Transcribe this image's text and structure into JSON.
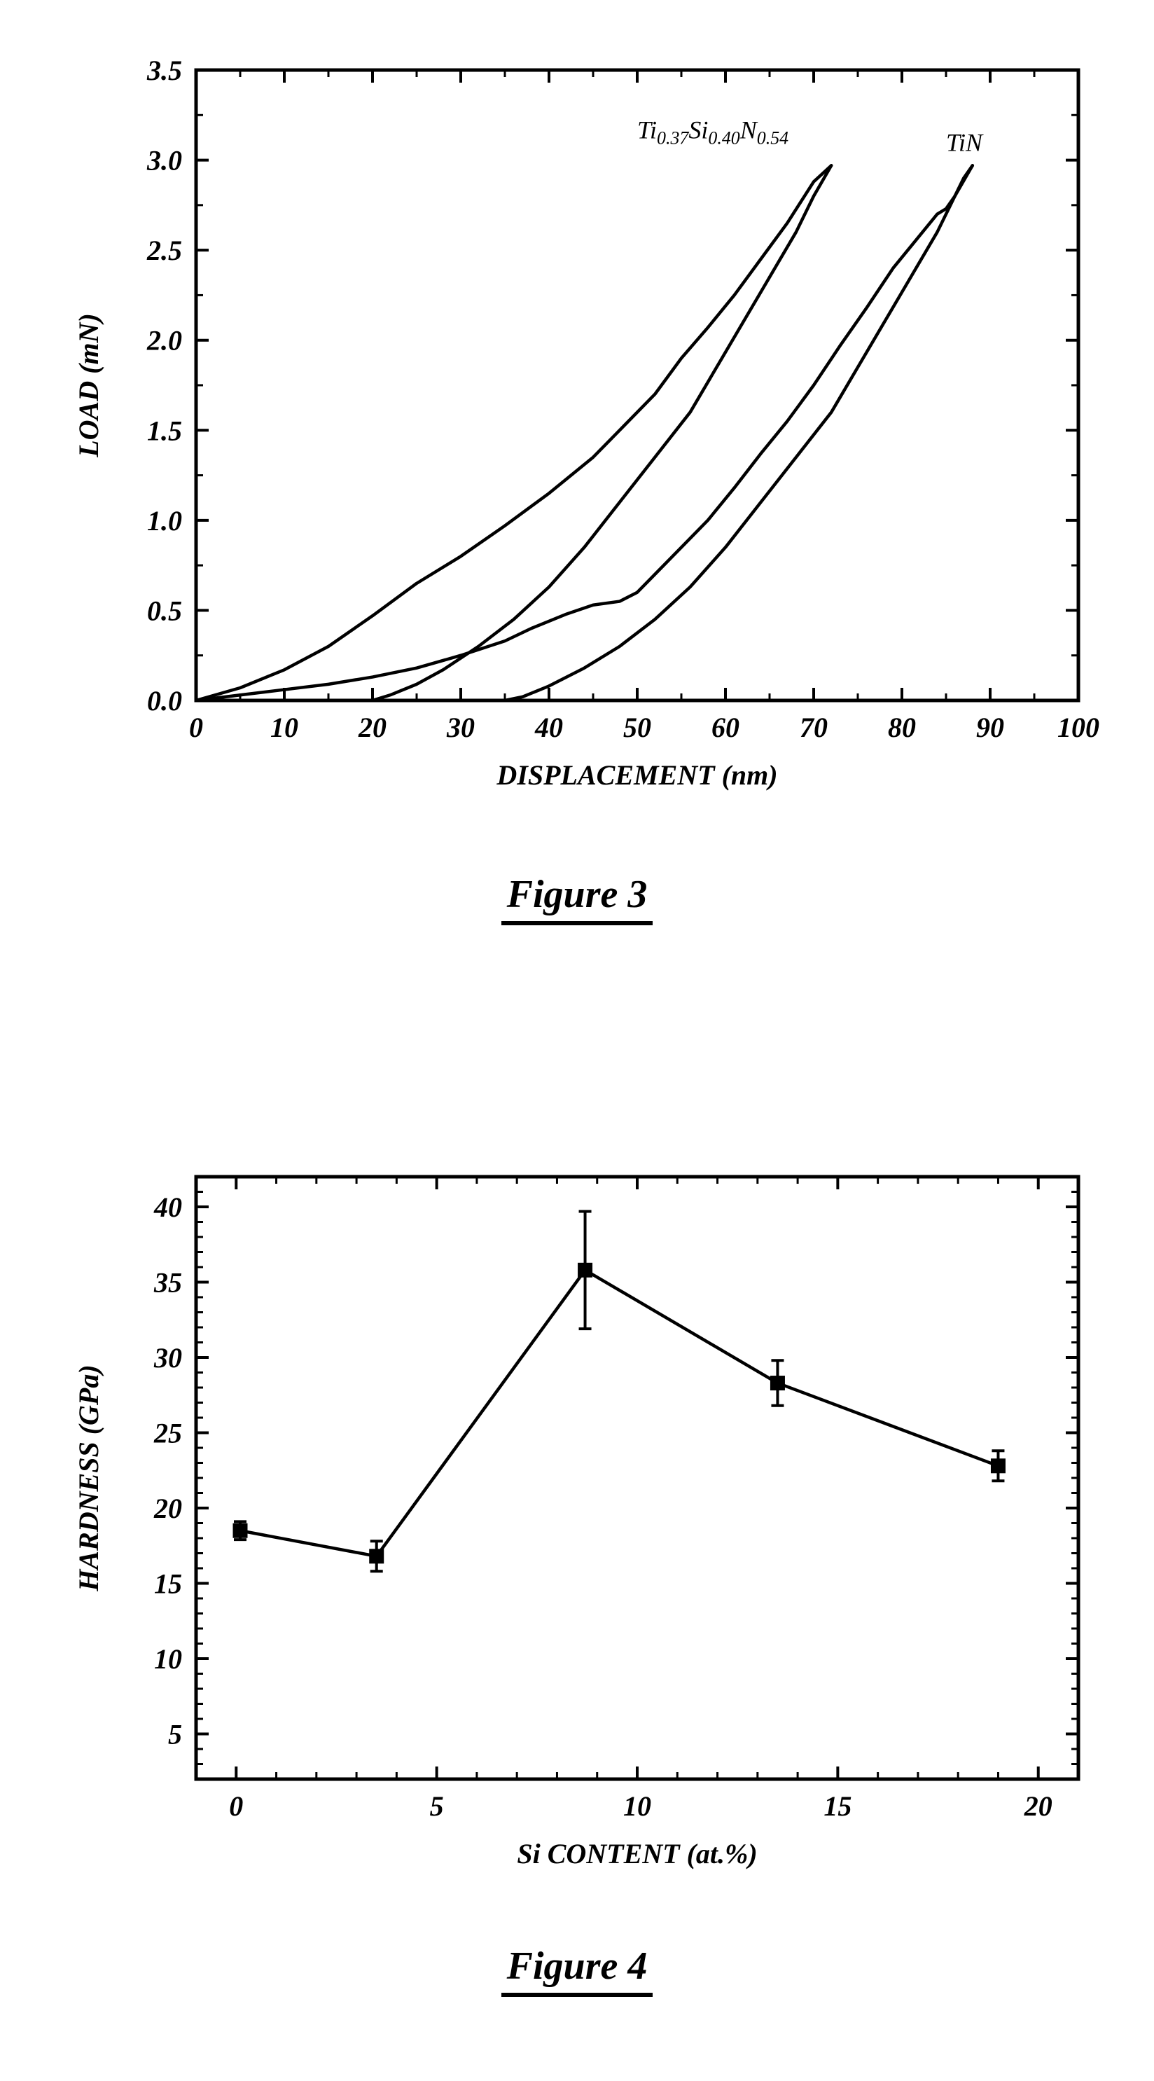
{
  "figure3": {
    "caption": "Figure 3",
    "type": "line",
    "xlabel": "DISPLACEMENT (nm)",
    "ylabel": "LOAD (mN)",
    "xlim": [
      0,
      100
    ],
    "ylim": [
      0.0,
      3.5
    ],
    "xticks": [
      0,
      10,
      20,
      30,
      40,
      50,
      60,
      70,
      80,
      90,
      100
    ],
    "yticks": [
      0.0,
      0.5,
      1.0,
      1.5,
      2.0,
      2.5,
      3.0,
      3.5
    ],
    "ytick_labels": [
      "0.0",
      "0.5",
      "1.0",
      "1.5",
      "2.0",
      "2.5",
      "3.0",
      "3.5"
    ],
    "label_fontsize": 40,
    "tick_fontsize": 40,
    "series_label_fontsize": 36,
    "line_width": 4.5,
    "line_color": "#000000",
    "axis_color": "#000000",
    "axis_width": 5,
    "tick_length_major": 18,
    "tick_length_minor": 10,
    "background_color": "#ffffff",
    "series": [
      {
        "name": "TiSiN_load",
        "label": "Ti_{0.37}Si_{0.40}N_{0.54}",
        "label_pos": {
          "x": 50,
          "y": 3.12
        },
        "points": [
          [
            0,
            0.0
          ],
          [
            5,
            0.07
          ],
          [
            10,
            0.17
          ],
          [
            15,
            0.3
          ],
          [
            20,
            0.47
          ],
          [
            25,
            0.65
          ],
          [
            30,
            0.8
          ],
          [
            35,
            0.97
          ],
          [
            40,
            1.15
          ],
          [
            45,
            1.35
          ],
          [
            48,
            1.5
          ],
          [
            52,
            1.7
          ],
          [
            55,
            1.9
          ],
          [
            58,
            2.07
          ],
          [
            61,
            2.25
          ],
          [
            64,
            2.45
          ],
          [
            67,
            2.65
          ],
          [
            70,
            2.88
          ],
          [
            72,
            2.97
          ]
        ]
      },
      {
        "name": "TiSiN_unload",
        "points": [
          [
            72,
            2.97
          ],
          [
            70,
            2.8
          ],
          [
            68,
            2.6
          ],
          [
            65,
            2.35
          ],
          [
            62,
            2.1
          ],
          [
            59,
            1.85
          ],
          [
            56,
            1.6
          ],
          [
            52,
            1.35
          ],
          [
            48,
            1.1
          ],
          [
            44,
            0.85
          ],
          [
            40,
            0.63
          ],
          [
            36,
            0.45
          ],
          [
            32,
            0.3
          ],
          [
            28,
            0.17
          ],
          [
            25,
            0.09
          ],
          [
            22,
            0.03
          ],
          [
            20,
            0.0
          ]
        ]
      },
      {
        "name": "TiN_load",
        "label": "TiN",
        "label_pos": {
          "x": 85,
          "y": 3.05
        },
        "points": [
          [
            0,
            0.0
          ],
          [
            5,
            0.03
          ],
          [
            10,
            0.06
          ],
          [
            15,
            0.09
          ],
          [
            20,
            0.13
          ],
          [
            25,
            0.18
          ],
          [
            30,
            0.25
          ],
          [
            35,
            0.33
          ],
          [
            38,
            0.4
          ],
          [
            42,
            0.48
          ],
          [
            45,
            0.53
          ],
          [
            48,
            0.55
          ],
          [
            50,
            0.6
          ],
          [
            52,
            0.7
          ],
          [
            55,
            0.85
          ],
          [
            58,
            1.0
          ],
          [
            61,
            1.18
          ],
          [
            64,
            1.37
          ],
          [
            67,
            1.55
          ],
          [
            70,
            1.75
          ],
          [
            73,
            1.97
          ],
          [
            76,
            2.18
          ],
          [
            79,
            2.4
          ],
          [
            82,
            2.58
          ],
          [
            84,
            2.7
          ],
          [
            85,
            2.73
          ],
          [
            86,
            2.8
          ],
          [
            87,
            2.9
          ],
          [
            88,
            2.97
          ]
        ]
      },
      {
        "name": "TiN_unload",
        "points": [
          [
            88,
            2.97
          ],
          [
            86,
            2.8
          ],
          [
            84,
            2.6
          ],
          [
            81,
            2.35
          ],
          [
            78,
            2.1
          ],
          [
            75,
            1.85
          ],
          [
            72,
            1.6
          ],
          [
            68,
            1.35
          ],
          [
            64,
            1.1
          ],
          [
            60,
            0.85
          ],
          [
            56,
            0.63
          ],
          [
            52,
            0.45
          ],
          [
            48,
            0.3
          ],
          [
            44,
            0.18
          ],
          [
            40,
            0.08
          ],
          [
            37,
            0.02
          ],
          [
            35,
            0.0
          ]
        ]
      }
    ]
  },
  "figure4": {
    "caption": "Figure 4",
    "type": "line-scatter-errorbar",
    "xlabel": "Si CONTENT (at.%)",
    "ylabel": "HARDNESS (GPa)",
    "xlim": [
      -1,
      21
    ],
    "ylim": [
      2,
      42
    ],
    "xticks": [
      0,
      5,
      10,
      15,
      20
    ],
    "yticks": [
      5,
      10,
      15,
      20,
      25,
      30,
      35,
      40
    ],
    "y_minor_step": 1,
    "x_minor_step": 1,
    "label_fontsize": 40,
    "tick_fontsize": 40,
    "line_width": 4.5,
    "line_color": "#000000",
    "axis_color": "#000000",
    "axis_width": 5,
    "tick_length_major": 18,
    "tick_length_minor": 10,
    "marker": "square",
    "marker_size": 20,
    "marker_fill": "#000000",
    "errorbar_cap_width": 18,
    "errorbar_width": 4,
    "background_color": "#ffffff",
    "data": [
      {
        "x": 0.1,
        "y": 18.5,
        "err": 0.6
      },
      {
        "x": 3.5,
        "y": 16.8,
        "err": 1.0
      },
      {
        "x": 8.7,
        "y": 35.8,
        "err": 3.9
      },
      {
        "x": 13.5,
        "y": 28.3,
        "err": 1.5
      },
      {
        "x": 19.0,
        "y": 22.8,
        "err": 1.0
      }
    ]
  }
}
